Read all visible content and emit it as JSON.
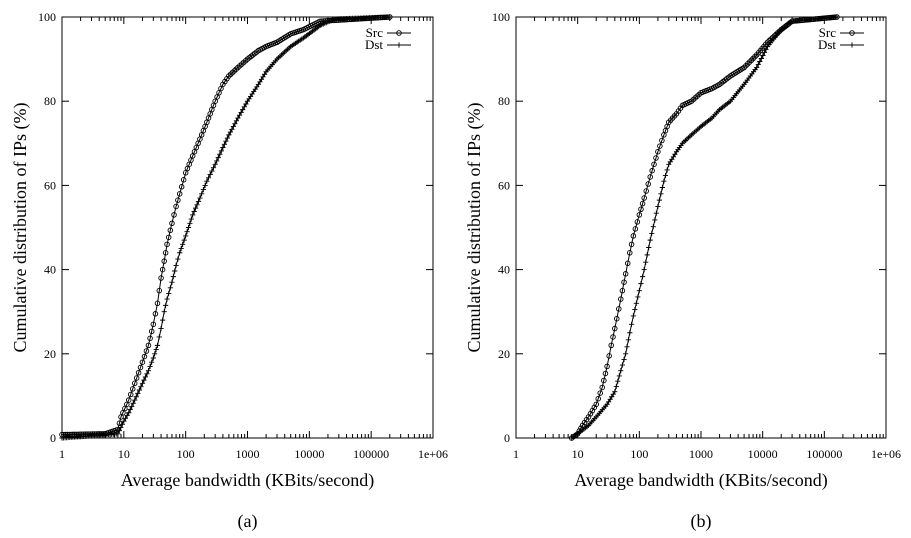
{
  "chart_data": [
    {
      "type": "line",
      "caption": "(a)",
      "xlabel": "Average bandwidth (KBits/second)",
      "ylabel": "Cumulative distribution of IPs (%)",
      "x_scale": "log",
      "xlim": [
        1,
        1000000
      ],
      "ylim": [
        0,
        100
      ],
      "x_tick_labels": [
        "1",
        "10",
        "100",
        "1000",
        "10000",
        "100000",
        "1e+06"
      ],
      "y_tick_labels": [
        "0",
        "20",
        "40",
        "60",
        "80",
        "100"
      ],
      "legend_position": "top-right",
      "series": [
        {
          "name": "Src",
          "marker": "circle",
          "points": [
            [
              1,
              0.8
            ],
            [
              5,
              1
            ],
            [
              8,
              2
            ],
            [
              9,
              5
            ],
            [
              12,
              9
            ],
            [
              15,
              13
            ],
            [
              20,
              18
            ],
            [
              25,
              22
            ],
            [
              30,
              27
            ],
            [
              35,
              32
            ],
            [
              40,
              38
            ],
            [
              45,
              42
            ],
            [
              50,
              46
            ],
            [
              60,
              51
            ],
            [
              70,
              55
            ],
            [
              80,
              58
            ],
            [
              100,
              63
            ],
            [
              130,
              67
            ],
            [
              170,
              71
            ],
            [
              220,
              75
            ],
            [
              300,
              80
            ],
            [
              400,
              84
            ],
            [
              500,
              86
            ],
            [
              700,
              88
            ],
            [
              1000,
              90
            ],
            [
              1500,
              92
            ],
            [
              2000,
              93
            ],
            [
              3000,
              94
            ],
            [
              5000,
              96
            ],
            [
              8000,
              97
            ],
            [
              15000,
              99
            ],
            [
              200000,
              100
            ]
          ]
        },
        {
          "name": "Dst",
          "marker": "plus",
          "points": [
            [
              1,
              0
            ],
            [
              8,
              1
            ],
            [
              10,
              4
            ],
            [
              12,
              6
            ],
            [
              15,
              9
            ],
            [
              20,
              13
            ],
            [
              25,
              16
            ],
            [
              30,
              19
            ],
            [
              35,
              22
            ],
            [
              40,
              26
            ],
            [
              45,
              30
            ],
            [
              50,
              33
            ],
            [
              60,
              37
            ],
            [
              70,
              41
            ],
            [
              80,
              44
            ],
            [
              100,
              48
            ],
            [
              130,
              53
            ],
            [
              170,
              57
            ],
            [
              220,
              61
            ],
            [
              300,
              65
            ],
            [
              400,
              69
            ],
            [
              500,
              72
            ],
            [
              700,
              76
            ],
            [
              1000,
              80
            ],
            [
              1500,
              84
            ],
            [
              2000,
              87
            ],
            [
              3000,
              90
            ],
            [
              5000,
              93
            ],
            [
              8000,
              95
            ],
            [
              15000,
              98
            ],
            [
              25000,
              99.5
            ],
            [
              200000,
              100
            ]
          ]
        }
      ]
    },
    {
      "type": "line",
      "caption": "(b)",
      "xlabel": "Average bandwidth (KBits/second)",
      "ylabel": "Cumulative distribution of IPs (%)",
      "x_scale": "log",
      "xlim": [
        1,
        1000000
      ],
      "ylim": [
        0,
        100
      ],
      "x_tick_labels": [
        "1",
        "10",
        "100",
        "1000",
        "10000",
        "100000",
        "1e+06"
      ],
      "y_tick_labels": [
        "0",
        "20",
        "40",
        "60",
        "80",
        "100"
      ],
      "legend_position": "top-right",
      "series": [
        {
          "name": "Src",
          "marker": "circle",
          "points": [
            [
              8,
              0
            ],
            [
              10,
              1
            ],
            [
              12,
              3
            ],
            [
              15,
              5
            ],
            [
              20,
              8
            ],
            [
              25,
              12
            ],
            [
              30,
              17
            ],
            [
              35,
              22
            ],
            [
              40,
              26
            ],
            [
              50,
              33
            ],
            [
              60,
              39
            ],
            [
              70,
              44
            ],
            [
              80,
              48
            ],
            [
              100,
              53
            ],
            [
              120,
              57
            ],
            [
              150,
              62
            ],
            [
              200,
              68
            ],
            [
              250,
              72
            ],
            [
              300,
              75
            ],
            [
              400,
              77
            ],
            [
              500,
              79
            ],
            [
              700,
              80
            ],
            [
              1000,
              82
            ],
            [
              1500,
              83
            ],
            [
              2000,
              84
            ],
            [
              3000,
              86
            ],
            [
              5000,
              88
            ],
            [
              8000,
              91
            ],
            [
              12000,
              94
            ],
            [
              20000,
              97
            ],
            [
              30000,
              99
            ],
            [
              160000,
              100
            ]
          ]
        },
        {
          "name": "Dst",
          "marker": "plus",
          "points": [
            [
              8,
              0
            ],
            [
              10,
              1
            ],
            [
              15,
              3
            ],
            [
              20,
              5
            ],
            [
              30,
              8
            ],
            [
              40,
              11
            ],
            [
              50,
              16
            ],
            [
              60,
              20
            ],
            [
              70,
              25
            ],
            [
              80,
              29
            ],
            [
              100,
              35
            ],
            [
              120,
              40
            ],
            [
              150,
              47
            ],
            [
              200,
              55
            ],
            [
              250,
              61
            ],
            [
              300,
              65
            ],
            [
              400,
              68
            ],
            [
              500,
              70
            ],
            [
              700,
              72
            ],
            [
              1000,
              74
            ],
            [
              1500,
              76
            ],
            [
              2000,
              78
            ],
            [
              3000,
              80
            ],
            [
              5000,
              84
            ],
            [
              8000,
              88
            ],
            [
              12000,
              93
            ],
            [
              20000,
              97
            ],
            [
              30000,
              99
            ],
            [
              160000,
              100
            ]
          ]
        }
      ]
    }
  ]
}
